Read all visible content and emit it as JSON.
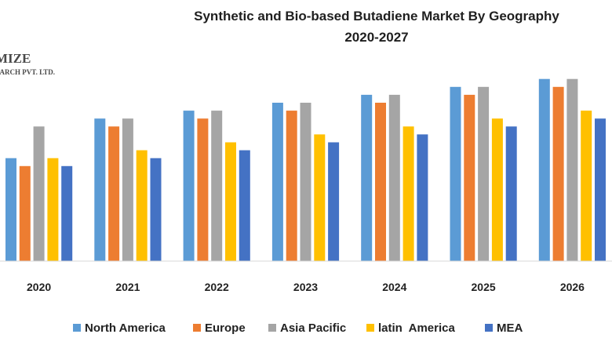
{
  "chart_data": {
    "type": "bar",
    "title": "Synthetic and Bio-based Butadiene Market By Geography",
    "subtitle": "2020-2027",
    "xlabel": "",
    "ylabel": "",
    "ylim": [
      0,
      25
    ],
    "grid": false,
    "legend_position": "bottom",
    "categories": [
      "2020",
      "2021",
      "2022",
      "2023",
      "2024",
      "2025",
      "2026"
    ],
    "series": [
      {
        "name": "North America",
        "color": "#5b9bd5",
        "values": [
          13,
          18,
          19,
          20,
          21,
          22,
          23
        ]
      },
      {
        "name": "Europe",
        "color": "#ed7d31",
        "values": [
          12,
          17,
          18,
          19,
          20,
          21,
          22
        ]
      },
      {
        "name": "Asia Pacific",
        "color": "#a5a5a5",
        "values": [
          17,
          18,
          19,
          20,
          21,
          22,
          23
        ]
      },
      {
        "name": "latin  America",
        "color": "#ffc000",
        "values": [
          13,
          14,
          15,
          16,
          17,
          18,
          19
        ]
      },
      {
        "name": "MEA",
        "color": "#4472c4",
        "values": [
          12,
          13,
          14,
          15,
          16,
          17,
          18
        ]
      }
    ]
  },
  "watermark": {
    "line1": "MIZE",
    "line2": "RESEARCH PVT. LTD."
  }
}
